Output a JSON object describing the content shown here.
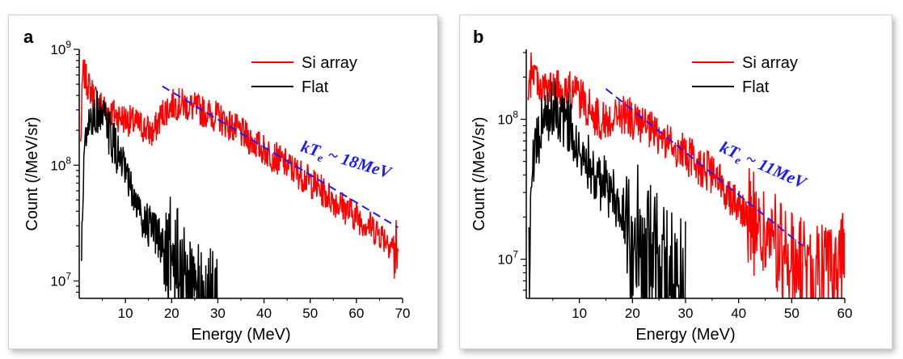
{
  "chart_data": [
    {
      "panel_label": "a",
      "type": "line",
      "xlabel": "Energy (MeV)",
      "ylabel": "Count (/MeV/sr)",
      "xlim": [
        0,
        70
      ],
      "xticks": [
        10,
        20,
        30,
        40,
        50,
        60,
        70
      ],
      "ylim_log10": [
        6.85,
        9.0
      ],
      "yticks": [
        {
          "exp": 7,
          "mantissa": "10",
          "power": "7"
        },
        {
          "exp": 8,
          "mantissa": "10",
          "power": "8"
        },
        {
          "exp": 9,
          "mantissa": "10",
          "power": "9"
        }
      ],
      "legend": [
        {
          "label": "Si array",
          "color": "#ff0000"
        },
        {
          "label": "Flat",
          "color": "#000000"
        }
      ],
      "series": [
        {
          "name": "Si array",
          "color": "#ff0000",
          "noise": 0.14,
          "points": [
            [
              0.3,
              150000000.0
            ],
            [
              0.8,
              650000000.0
            ],
            [
              2,
              480000000.0
            ],
            [
              4,
              350000000.0
            ],
            [
              6,
              300000000.0
            ],
            [
              8,
              270000000.0
            ],
            [
              10,
              250000000.0
            ],
            [
              12,
              230000000.0
            ],
            [
              14,
              210000000.0
            ],
            [
              16,
              185000000.0
            ],
            [
              17,
              230000000.0
            ],
            [
              18,
              280000000.0
            ],
            [
              20,
              330000000.0
            ],
            [
              22,
              340000000.0
            ],
            [
              25,
              310000000.0
            ],
            [
              30,
              260000000.0
            ],
            [
              35,
              190000000.0
            ],
            [
              40,
              135000000.0
            ],
            [
              45,
              100000000.0
            ],
            [
              50,
              72000000.0
            ],
            [
              55,
              50000000.0
            ],
            [
              60,
              36000000.0
            ],
            [
              65,
              26000000.0
            ],
            [
              68,
              20000000.0
            ],
            [
              69,
              15000000.0
            ]
          ]
        },
        {
          "name": "Flat",
          "color": "#000000",
          "noise": 0.2,
          "points": [
            [
              0.5,
              15000000.0
            ],
            [
              1,
              120000000.0
            ],
            [
              2,
              200000000.0
            ],
            [
              3,
              260000000.0
            ],
            [
              4,
              290000000.0
            ],
            [
              5,
              260000000.0
            ],
            [
              6,
              210000000.0
            ],
            [
              8,
              135000000.0
            ],
            [
              10,
              80000000.0
            ],
            [
              12,
              50000000.0
            ],
            [
              14,
              34000000.0
            ],
            [
              16,
              26000000.0
            ],
            [
              18,
              21000000.0
            ],
            [
              20,
              16000000.0
            ],
            [
              22,
              12000000.0
            ],
            [
              24,
              9000000.0
            ],
            [
              26,
              7500000.0
            ],
            [
              28,
              6000000.0
            ],
            [
              30,
              5000000.0
            ]
          ]
        }
      ],
      "fit_line": {
        "x": [
          18,
          69
        ],
        "y": [
          480000000.0,
          29000000.0
        ],
        "color": "#1a1aff"
      },
      "annotation": {
        "k": "kT",
        "sub": "e",
        "rest": " ~ 18MeV",
        "color": "#1a1aff"
      }
    },
    {
      "panel_label": "b",
      "type": "line",
      "xlabel": "Energy (MeV)",
      "ylabel": "Count (/MeV/sr)",
      "xlim": [
        0,
        60
      ],
      "xticks": [
        10,
        20,
        30,
        40,
        50,
        60
      ],
      "ylim_log10": [
        6.72,
        8.5
      ],
      "yticks": [
        {
          "exp": 7,
          "mantissa": "10",
          "power": "7"
        },
        {
          "exp": 8,
          "mantissa": "10",
          "power": "8"
        }
      ],
      "legend": [
        {
          "label": "Si array",
          "color": "#ff0000"
        },
        {
          "label": "Flat",
          "color": "#000000"
        }
      ],
      "series": [
        {
          "name": "Si array",
          "color": "#ff0000",
          "noise": 0.15,
          "points": [
            [
              0.3,
              120000000.0
            ],
            [
              1,
              240000000.0
            ],
            [
              3,
              165000000.0
            ],
            [
              5,
              160000000.0
            ],
            [
              7,
              165000000.0
            ],
            [
              9,
              155000000.0
            ],
            [
              11,
              130000000.0
            ],
            [
              13,
              105000000.0
            ],
            [
              15,
              95000000.0
            ],
            [
              17,
              110000000.0
            ],
            [
              19,
              105000000.0
            ],
            [
              22,
              88000000.0
            ],
            [
              25,
              75000000.0
            ],
            [
              30,
              56000000.0
            ],
            [
              35,
              40000000.0
            ],
            [
              40,
              25000000.0
            ],
            [
              43,
              17000000.0
            ],
            [
              47,
              12000000.0
            ],
            [
              50,
              9500000.0
            ],
            [
              54,
              7500000.0
            ],
            [
              57,
              7500000.0
            ],
            [
              59,
              8000000.0
            ],
            [
              60,
              14000000.0
            ]
          ]
        },
        {
          "name": "Flat",
          "color": "#000000",
          "noise": 0.22,
          "points": [
            [
              0.5,
              11000000.0
            ],
            [
              1,
              40000000.0
            ],
            [
              2,
              65000000.0
            ],
            [
              3,
              90000000.0
            ],
            [
              4,
              110000000.0
            ],
            [
              5,
              125000000.0
            ],
            [
              6,
              115000000.0
            ],
            [
              8,
              95000000.0
            ],
            [
              10,
              70000000.0
            ],
            [
              12,
              48000000.0
            ],
            [
              14,
              36000000.0
            ],
            [
              16,
              29000000.0
            ],
            [
              18,
              23000000.0
            ],
            [
              20,
              16000000.0
            ],
            [
              22,
              12000000.0
            ],
            [
              24,
              9500000.0
            ],
            [
              26,
              7500000.0
            ],
            [
              28,
              6500000.0
            ],
            [
              30,
              6000000.0
            ]
          ]
        }
      ],
      "fit_line": {
        "x": [
          15,
          52
        ],
        "y": [
          165000000.0,
          12500000.0
        ],
        "color": "#1a1aff"
      },
      "annotation": {
        "k": "kT",
        "sub": "e",
        "rest": " ~ 11MeV",
        "color": "#1a1aff"
      }
    }
  ]
}
